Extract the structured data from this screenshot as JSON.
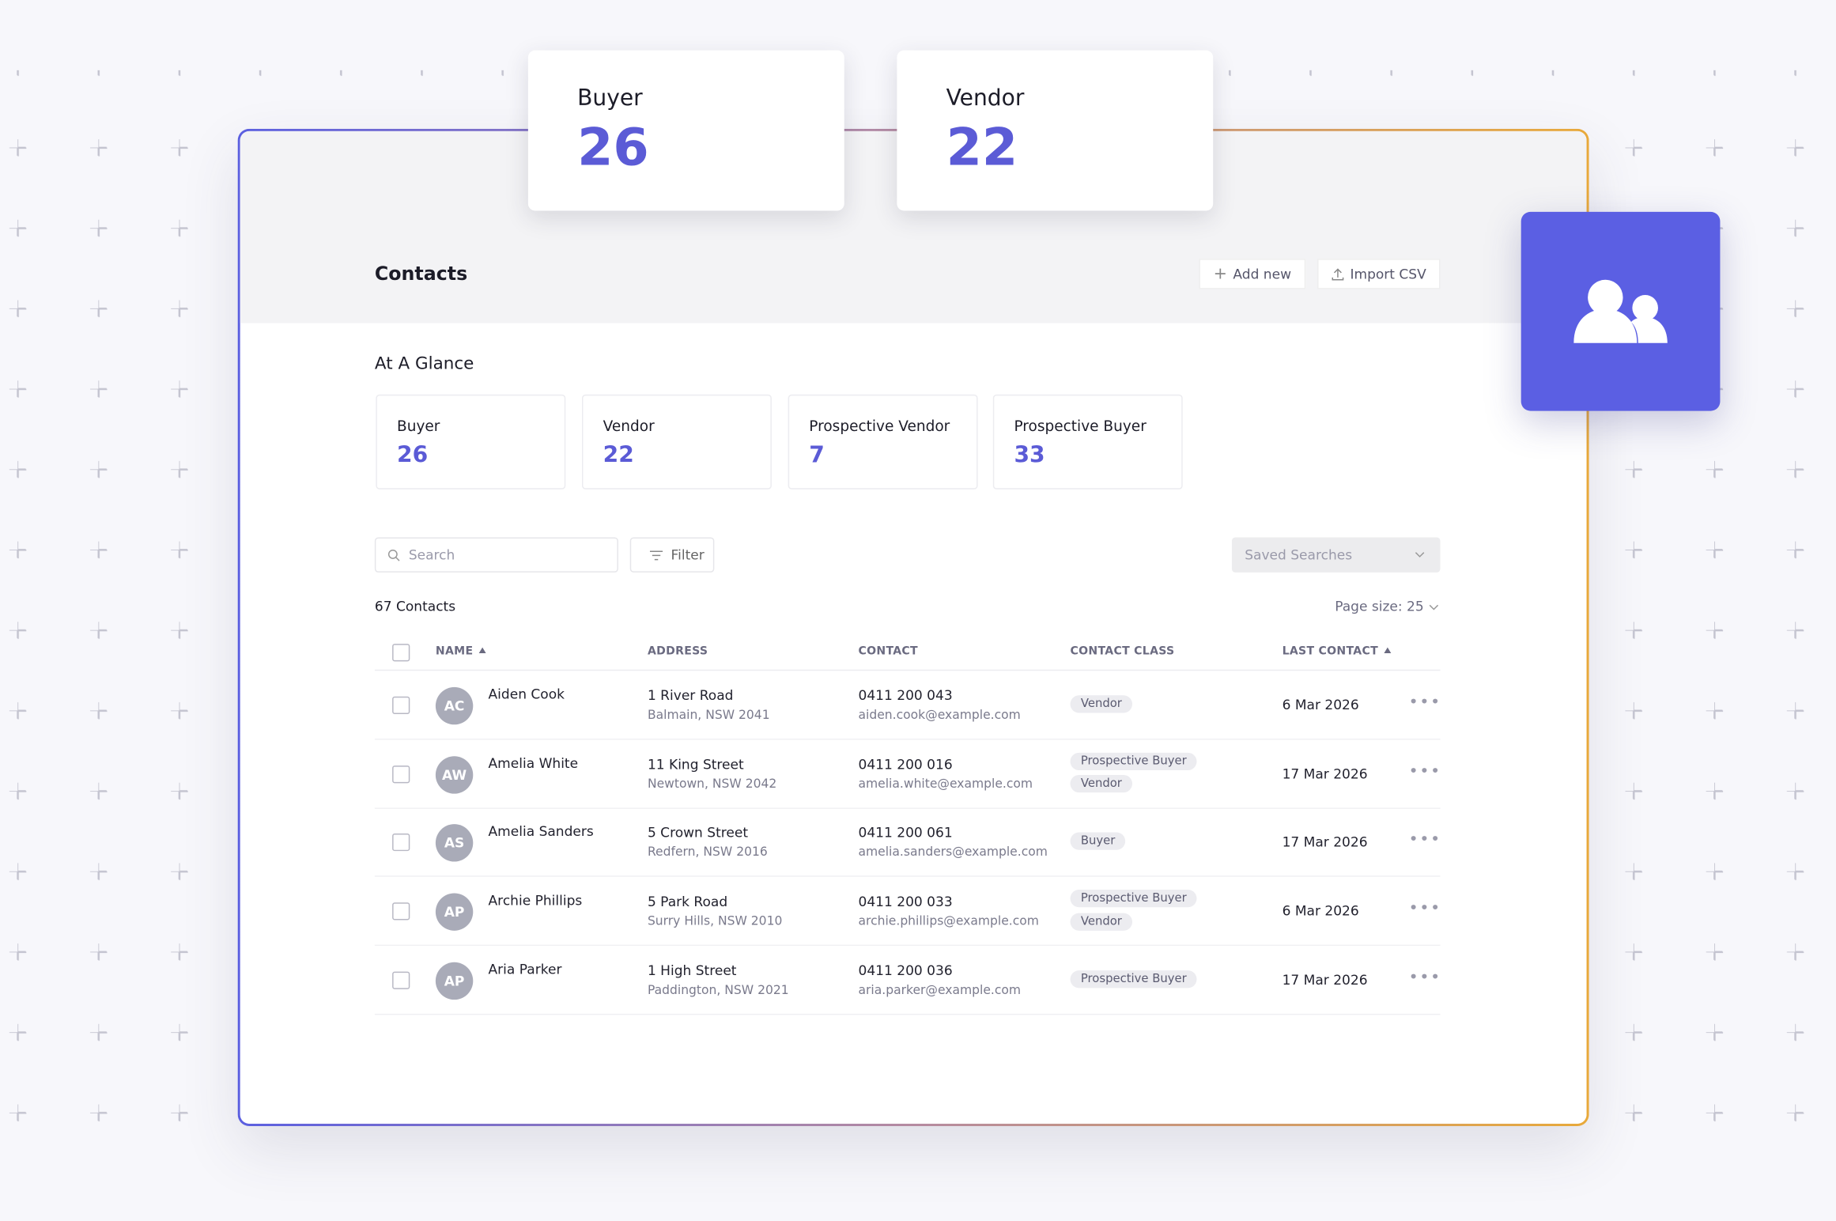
{
  "floating_cards": [
    {
      "label": "Buyer",
      "value": "26"
    },
    {
      "label": "Vendor",
      "value": "22"
    }
  ],
  "header": {
    "title": "Contacts",
    "buttons": [
      "Add new",
      "Import CSV"
    ]
  },
  "glance": {
    "title": "At A Glance",
    "cards": [
      {
        "label": "Buyer",
        "value": "26"
      },
      {
        "label": "Vendor",
        "value": "22"
      },
      {
        "label": "Prospective Vendor",
        "value": "7"
      },
      {
        "label": "Prospective Buyer",
        "value": "33"
      }
    ]
  },
  "toolbar": {
    "search_placeholder": "Search",
    "filter": "Filter",
    "saved_searches": "Saved Searches"
  },
  "summary": {
    "count": "67 Contacts",
    "page_size": "Page size: 25"
  },
  "table": {
    "columns": [
      "NAME",
      "ADDRESS",
      "CONTACT",
      "CONTACT CLASS",
      "LAST CONTACT"
    ],
    "rows": [
      {
        "initials": "AC",
        "name": "Aiden Cook",
        "address": [
          "1 River Road",
          "Balmain, NSW 2041"
        ],
        "contact": [
          "0411 200 043",
          "aiden.cook@example.com"
        ],
        "classes": [
          "Vendor"
        ],
        "last_contact": "6 Mar 2026"
      },
      {
        "initials": "AW",
        "name": "Amelia White",
        "address": [
          "11 King Street",
          "Newtown, NSW 2042"
        ],
        "contact": [
          "0411 200 016",
          "amelia.white@example.com"
        ],
        "classes": [
          "Prospective Buyer",
          "Vendor"
        ],
        "last_contact": "17 Mar 2026"
      },
      {
        "initials": "AS",
        "name": "Amelia Sanders",
        "address": [
          "5 Crown Street",
          "Redfern, NSW 2016"
        ],
        "contact": [
          "0411 200 061",
          "amelia.sanders@example.com"
        ],
        "classes": [
          "Buyer"
        ],
        "last_contact": "17 Mar 2026"
      },
      {
        "initials": "AP",
        "name": "Archie Phillips",
        "address": [
          "5 Park Road",
          "Surry Hills, NSW 2010"
        ],
        "contact": [
          "0411 200 033",
          "archie.phillips@example.com"
        ],
        "classes": [
          "Prospective Buyer",
          "Vendor"
        ],
        "last_contact": "6 Mar 2026"
      },
      {
        "initials": "AP",
        "name": "Aria Parker",
        "address": [
          "1 High Street",
          "Paddington, NSW 2021"
        ],
        "contact": [
          "0411 200 036",
          "aria.parker@example.com"
        ],
        "classes": [
          "Prospective Buyer"
        ],
        "last_contact": "17 Mar 2026"
      }
    ]
  }
}
